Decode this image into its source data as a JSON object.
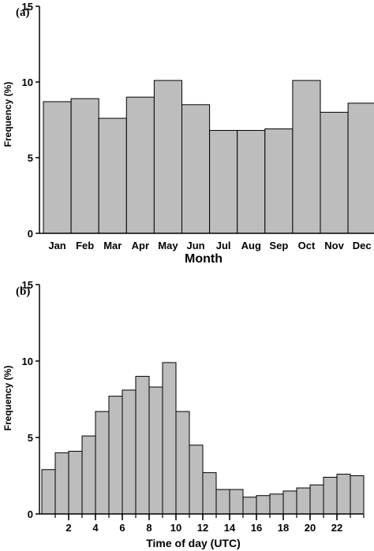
{
  "colors": {
    "bar_fill": "#bdbdbd",
    "bar_stroke": "#000000"
  },
  "chart_data": [
    {
      "type": "bar",
      "panel_label": "(a)",
      "xlabel": "Month",
      "ylabel": "Frequency (%)",
      "ylim": [
        0,
        15
      ],
      "yticks": [
        "0",
        "5",
        "10",
        "15"
      ],
      "categories": [
        "Jan",
        "Feb",
        "Mar",
        "Apr",
        "May",
        "Jun",
        "Jul",
        "Aug",
        "Sep",
        "Oct",
        "Nov",
        "Dec"
      ],
      "values": [
        8.7,
        8.9,
        7.6,
        9.0,
        10.1,
        8.5,
        6.8,
        6.8,
        6.9,
        10.1,
        8.0,
        8.6
      ]
    },
    {
      "type": "bar",
      "panel_label": "(b)",
      "xlabel": "Time of day (UTC)",
      "ylabel": "Frequency (%)",
      "ylim": [
        0,
        15
      ],
      "yticks": [
        "0",
        "5",
        "10",
        "15"
      ],
      "xticks": [
        "2",
        "4",
        "6",
        "8",
        "10",
        "12",
        "14",
        "16",
        "18",
        "20",
        "22"
      ],
      "categories": [
        "0",
        "1",
        "2",
        "3",
        "4",
        "5",
        "6",
        "7",
        "8",
        "9",
        "10",
        "11",
        "12",
        "13",
        "14",
        "15",
        "16",
        "17",
        "18",
        "19",
        "20",
        "21",
        "22",
        "23"
      ],
      "values": [
        2.9,
        4.0,
        4.1,
        5.1,
        6.7,
        7.7,
        8.1,
        9.0,
        8.3,
        9.9,
        6.7,
        4.5,
        2.7,
        1.6,
        1.6,
        1.1,
        1.2,
        1.3,
        1.5,
        1.7,
        1.9,
        2.4,
        2.6,
        2.5
      ]
    }
  ]
}
